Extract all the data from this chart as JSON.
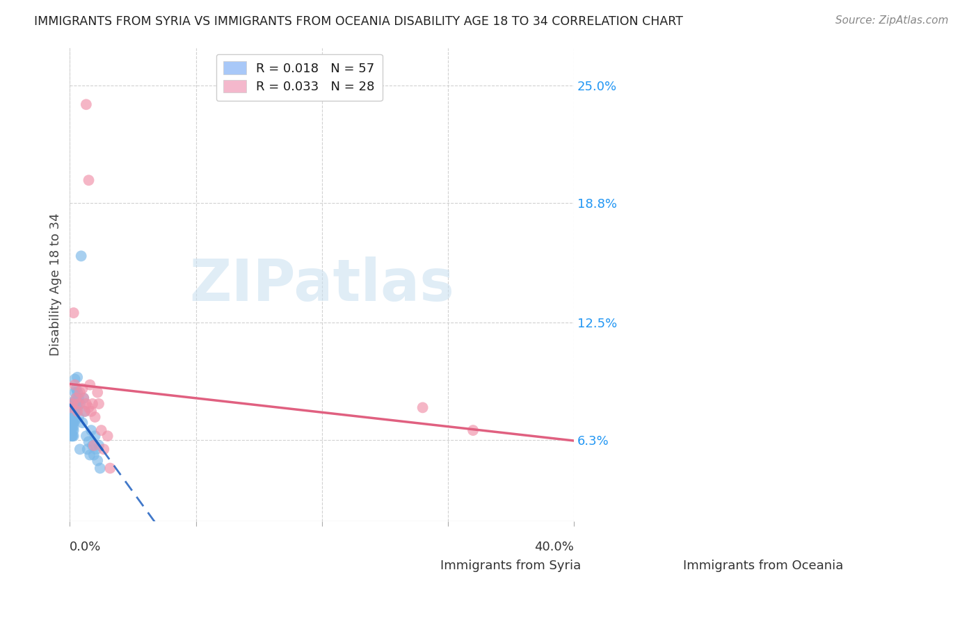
{
  "title": "IMMIGRANTS FROM SYRIA VS IMMIGRANTS FROM OCEANIA DISABILITY AGE 18 TO 34 CORRELATION CHART",
  "source": "Source: ZipAtlas.com",
  "ylabel": "Disability Age 18 to 34",
  "ytick_labels": [
    "6.3%",
    "12.5%",
    "18.8%",
    "25.0%"
  ],
  "ytick_values": [
    0.063,
    0.125,
    0.188,
    0.25
  ],
  "xlim": [
    0.0,
    0.4
  ],
  "ylim": [
    0.02,
    0.27
  ],
  "legend_r1": "R = 0.018",
  "legend_n1": "N = 57",
  "legend_r2": "R = 0.033",
  "legend_n2": "N = 28",
  "legend_color1": "#a8c8f8",
  "legend_color2": "#f4b8cc",
  "syria_dot_color": "#7ab8e8",
  "oceania_dot_color": "#f090a8",
  "syria_line_color": "#2060c0",
  "oceania_line_color": "#e06080",
  "watermark_color": "#c8dff0",
  "grid_color": "#cccccc",
  "title_color": "#222222",
  "source_color": "#888888",
  "ytick_color": "#2196F3",
  "xtick_color": "#333333",
  "ylabel_color": "#444444",
  "background_color": "#ffffff",
  "syria_x": [
    0.001,
    0.001,
    0.001,
    0.001,
    0.002,
    0.002,
    0.002,
    0.002,
    0.002,
    0.002,
    0.002,
    0.002,
    0.002,
    0.003,
    0.003,
    0.003,
    0.003,
    0.003,
    0.003,
    0.003,
    0.003,
    0.003,
    0.004,
    0.004,
    0.004,
    0.004,
    0.004,
    0.004,
    0.004,
    0.005,
    0.005,
    0.005,
    0.005,
    0.006,
    0.006,
    0.006,
    0.006,
    0.007,
    0.007,
    0.008,
    0.008,
    0.009,
    0.01,
    0.011,
    0.012,
    0.013,
    0.014,
    0.015,
    0.016,
    0.017,
    0.018,
    0.019,
    0.02,
    0.021,
    0.022,
    0.023,
    0.024
  ],
  "syria_y": [
    0.072,
    0.065,
    0.08,
    0.07,
    0.072,
    0.065,
    0.075,
    0.068,
    0.08,
    0.073,
    0.07,
    0.078,
    0.065,
    0.082,
    0.075,
    0.083,
    0.07,
    0.072,
    0.065,
    0.068,
    0.076,
    0.08,
    0.083,
    0.095,
    0.078,
    0.082,
    0.088,
    0.08,
    0.073,
    0.078,
    0.083,
    0.09,
    0.085,
    0.088,
    0.08,
    0.082,
    0.096,
    0.085,
    0.075,
    0.082,
    0.058,
    0.16,
    0.072,
    0.085,
    0.078,
    0.065,
    0.058,
    0.062,
    0.055,
    0.068,
    0.06,
    0.055,
    0.065,
    0.058,
    0.052,
    0.06,
    0.048
  ],
  "oceania_x": [
    0.001,
    0.002,
    0.003,
    0.004,
    0.005,
    0.006,
    0.007,
    0.008,
    0.01,
    0.011,
    0.012,
    0.013,
    0.015,
    0.016,
    0.017,
    0.018,
    0.019,
    0.02,
    0.022,
    0.023,
    0.025,
    0.027,
    0.03,
    0.032,
    0.28,
    0.32,
    0.015,
    0.013
  ],
  "oceania_y": [
    0.08,
    0.082,
    0.13,
    0.092,
    0.085,
    0.078,
    0.082,
    0.088,
    0.09,
    0.085,
    0.078,
    0.082,
    0.08,
    0.092,
    0.078,
    0.082,
    0.06,
    0.075,
    0.088,
    0.082,
    0.068,
    0.058,
    0.065,
    0.048,
    0.08,
    0.068,
    0.2,
    0.24
  ],
  "syria_trend_x": [
    0.0,
    0.024,
    0.4
  ],
  "syria_trend_y_solid_end": 0.024,
  "oceania_trend_x0": 0.0,
  "oceania_trend_x1": 0.4
}
